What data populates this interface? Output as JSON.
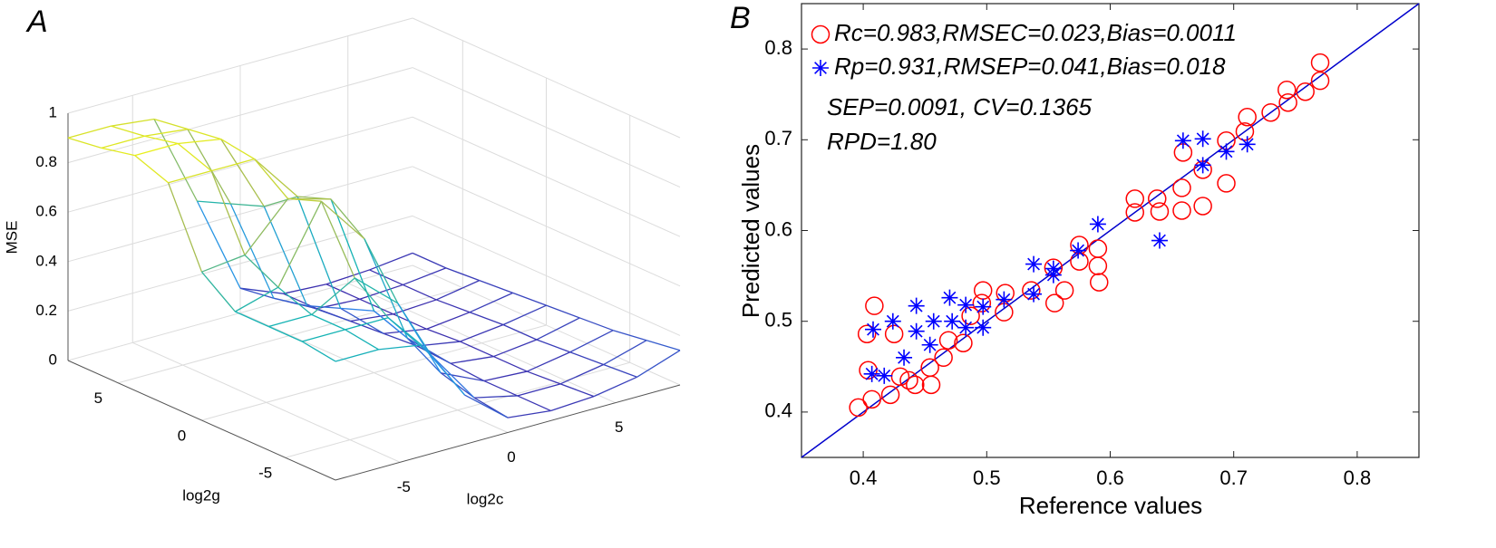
{
  "chart_data": [
    {
      "type": "surface",
      "label": "A",
      "zlabel": "MSE",
      "xlabel": "log2c",
      "ylabel": "log2g",
      "xlim": [
        -8,
        8
      ],
      "ylim": [
        -8,
        8
      ],
      "zlim": [
        0,
        1
      ],
      "xticks": [
        -5,
        0,
        5
      ],
      "yticks": [
        -5,
        0,
        5
      ],
      "zticks": [
        0,
        0.2,
        0.4,
        0.6,
        0.8,
        1
      ],
      "grid": true,
      "colormap": [
        "#3e26a8",
        "#2d8df0",
        "#15b3b4",
        "#a6bd50",
        "#f9fb0e"
      ],
      "x": [
        -8,
        -6,
        -4,
        -2,
        0,
        2,
        4,
        6,
        8
      ],
      "y": [
        -8,
        -6,
        -4,
        -2,
        0,
        2,
        4,
        6,
        8
      ],
      "z": [
        [
          0.48,
          0.48,
          0.45,
          0.2,
          0.06,
          0.04,
          0.05,
          0.08,
          0.14
        ],
        [
          0.5,
          0.5,
          0.5,
          0.3,
          0.08,
          0.04,
          0.04,
          0.07,
          0.12
        ],
        [
          0.5,
          0.5,
          0.6,
          0.45,
          0.12,
          0.04,
          0.03,
          0.06,
          0.1
        ],
        [
          0.5,
          0.55,
          0.85,
          0.65,
          0.2,
          0.05,
          0.03,
          0.05,
          0.09
        ],
        [
          0.6,
          0.62,
          0.8,
          0.75,
          0.25,
          0.06,
          0.03,
          0.05,
          0.08
        ],
        [
          0.9,
          0.9,
          0.9,
          0.7,
          0.2,
          0.05,
          0.02,
          0.04,
          0.07
        ],
        [
          0.95,
          0.95,
          0.92,
          0.6,
          0.15,
          0.04,
          0.02,
          0.03,
          0.06
        ],
        [
          0.92,
          0.92,
          0.9,
          0.55,
          0.12,
          0.03,
          0.02,
          0.03,
          0.05
        ],
        [
          0.9,
          0.9,
          0.88,
          0.5,
          0.1,
          0.03,
          0.02,
          0.03,
          0.05
        ]
      ]
    },
    {
      "type": "scatter",
      "label": "B",
      "xlabel": "Reference values",
      "ylabel": "Predicted values",
      "xlim": [
        0.35,
        0.85
      ],
      "ylim": [
        0.35,
        0.85
      ],
      "xticks": [
        0.4,
        0.5,
        0.6,
        0.7,
        0.8
      ],
      "yticks": [
        0.4,
        0.5,
        0.6,
        0.7,
        0.8
      ],
      "series": [
        {
          "name": "Rc=0.983,RMSEC=0.023,Bias=0.0011",
          "color": "#ff0000",
          "marker": "circle",
          "x": [
            0.396,
            0.407,
            0.403,
            0.409,
            0.404,
            0.422,
            0.425,
            0.43,
            0.437,
            0.442,
            0.455,
            0.454,
            0.465,
            0.469,
            0.481,
            0.487,
            0.497,
            0.496,
            0.514,
            0.515,
            0.536,
            0.555,
            0.554,
            0.563,
            0.575,
            0.575,
            0.59,
            0.591,
            0.59,
            0.62,
            0.62,
            0.64,
            0.638,
            0.658,
            0.658,
            0.659,
            0.675,
            0.675,
            0.694,
            0.694,
            0.709,
            0.711,
            0.73,
            0.743,
            0.744,
            0.758,
            0.77,
            0.77
          ],
          "values": [
            0.405,
            0.414,
            0.486,
            0.517,
            0.446,
            0.419,
            0.486,
            0.439,
            0.435,
            0.43,
            0.43,
            0.449,
            0.46,
            0.479,
            0.476,
            0.506,
            0.534,
            0.52,
            0.51,
            0.531,
            0.534,
            0.52,
            0.559,
            0.534,
            0.566,
            0.584,
            0.561,
            0.543,
            0.58,
            0.635,
            0.62,
            0.621,
            0.635,
            0.647,
            0.622,
            0.686,
            0.627,
            0.667,
            0.652,
            0.699,
            0.709,
            0.725,
            0.73,
            0.755,
            0.741,
            0.753,
            0.765,
            0.785
          ]
        },
        {
          "name": "Rp=0.931,RMSEP=0.041,Bias=0.018",
          "color": "#0000ff",
          "marker": "star",
          "x": [
            0.407,
            0.408,
            0.417,
            0.424,
            0.433,
            0.443,
            0.443,
            0.454,
            0.457,
            0.47,
            0.472,
            0.483,
            0.483,
            0.497,
            0.497,
            0.514,
            0.538,
            0.538,
            0.554,
            0.554,
            0.574,
            0.59,
            0.64,
            0.659,
            0.675,
            0.675,
            0.694,
            0.711
          ],
          "values": [
            0.442,
            0.491,
            0.44,
            0.5,
            0.46,
            0.517,
            0.489,
            0.474,
            0.5,
            0.526,
            0.5,
            0.518,
            0.493,
            0.493,
            0.516,
            0.524,
            0.53,
            0.563,
            0.551,
            0.558,
            0.578,
            0.607,
            0.589,
            0.699,
            0.672,
            0.701,
            0.687,
            0.695
          ]
        }
      ],
      "fit_line": {
        "x": [
          0.35,
          0.85
        ],
        "values": [
          0.35,
          0.85
        ],
        "color": "#0000cc"
      },
      "annotations": [
        "SEP=0.0091, CV=0.1365",
        "RPD=1.80"
      ]
    }
  ]
}
